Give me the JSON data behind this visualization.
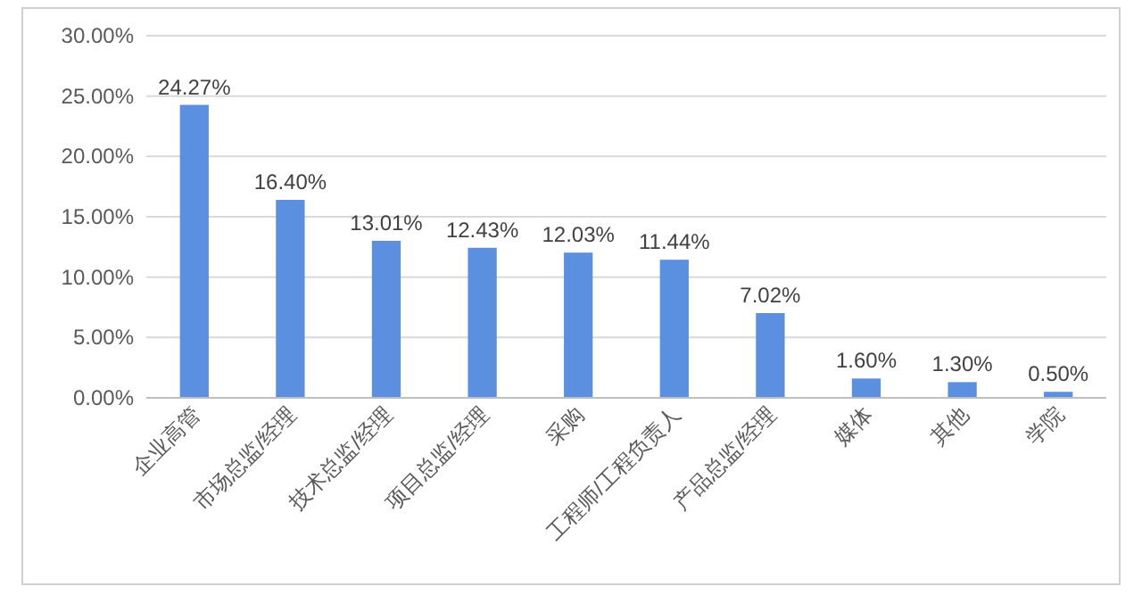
{
  "chart_data": {
    "type": "bar",
    "categories": [
      "企业高管",
      "市场总监/经理",
      "技术总监/经理",
      "项目总监/经理",
      "采购",
      "工程师/工程负责人",
      "产品总监/经理",
      "媒体",
      "其他",
      "学院"
    ],
    "values": [
      24.27,
      16.4,
      13.01,
      12.43,
      12.03,
      11.44,
      7.02,
      1.6,
      1.3,
      0.5
    ],
    "value_labels": [
      "24.27%",
      "16.40%",
      "13.01%",
      "12.43%",
      "12.03%",
      "11.44%",
      "7.02%",
      "1.60%",
      "1.30%",
      "0.50%"
    ],
    "color": "#5b8fe0",
    "ylim": [
      0,
      30
    ],
    "yticks": [
      {
        "value": 0,
        "label": "0.00%"
      },
      {
        "value": 5,
        "label": "5.00%"
      },
      {
        "value": 10,
        "label": "10.00%"
      },
      {
        "value": 15,
        "label": "15.00%"
      },
      {
        "value": 20,
        "label": "20.00%"
      },
      {
        "value": 25,
        "label": "25.00%"
      },
      {
        "value": 30,
        "label": "30.00%"
      }
    ],
    "grid": "y"
  }
}
